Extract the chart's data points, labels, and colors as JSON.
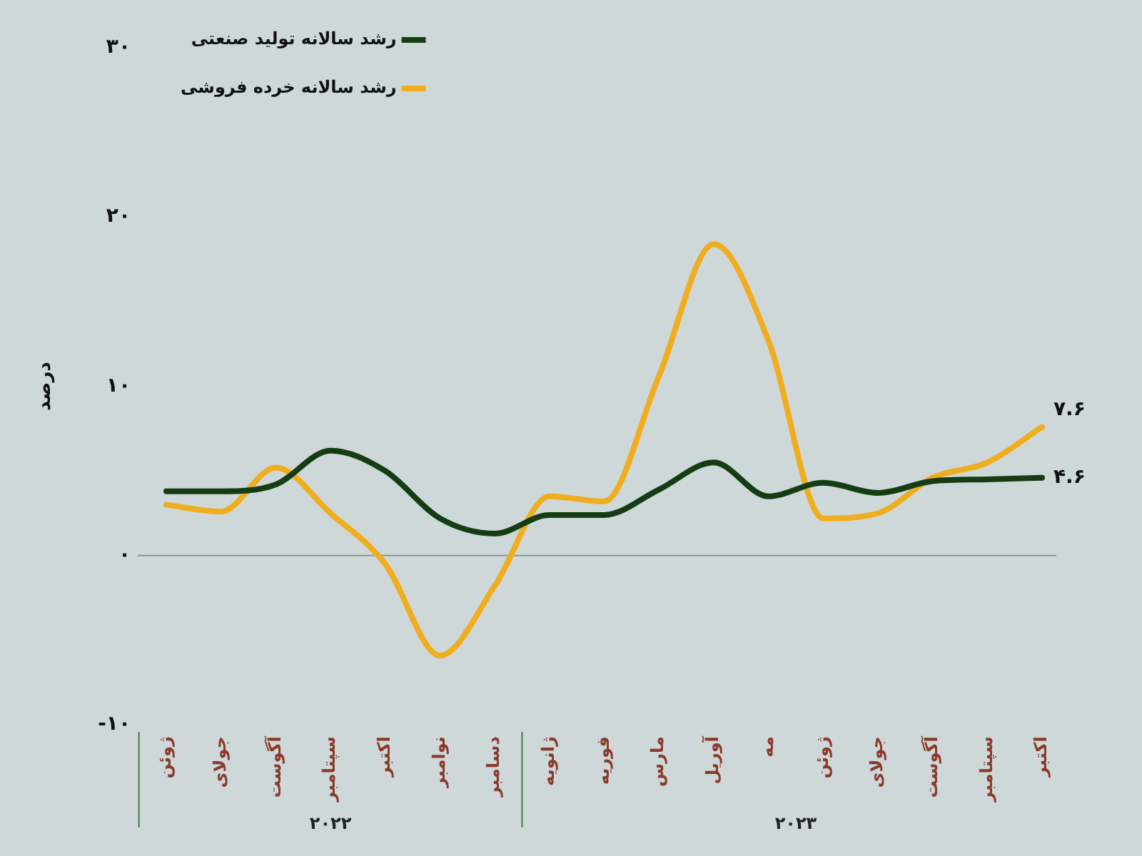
{
  "chart_data": {
    "type": "line",
    "ylabel": "درصد",
    "categories": [
      "ژوئن",
      "جولای",
      "آگوست",
      "سپتامبر",
      "اکتبر",
      "نوامبر",
      "دسامبر",
      "ژانویه",
      "فوریه",
      "مارس",
      "آوریل",
      "مه",
      "ژوئن",
      "جولای",
      "آگوست",
      "سپتامبر",
      "اکتبر"
    ],
    "series": [
      {
        "name": "رشد سالانه تولید صنعتی",
        "color": "#143d14",
        "values": [
          3.8,
          3.8,
          4.2,
          6.2,
          5.0,
          2.2,
          1.3,
          2.4,
          2.4,
          3.9,
          5.5,
          3.5,
          4.3,
          3.7,
          4.4,
          4.5,
          4.6
        ],
        "value_labels": [
          null,
          null,
          null,
          null,
          null,
          null,
          null,
          null,
          null,
          null,
          null,
          null,
          null,
          null,
          null,
          null,
          "۴.۶"
        ]
      },
      {
        "name": "رشد سالانه خرده فروشی",
        "color": "#f0ad1e",
        "values": [
          3.0,
          2.6,
          5.2,
          2.5,
          -0.5,
          -5.9,
          -1.8,
          3.5,
          3.2,
          10.6,
          18.4,
          12.7,
          2.2,
          2.5,
          4.6,
          5.5,
          7.6
        ],
        "value_labels": [
          null,
          null,
          null,
          null,
          null,
          null,
          null,
          null,
          null,
          null,
          null,
          null,
          null,
          null,
          null,
          null,
          "۷.۶"
        ]
      }
    ],
    "ylim": [
      -10,
      30
    ],
    "yticks": [
      {
        "value": -10,
        "label": "-۱۰"
      },
      {
        "value": 0,
        "label": "۰"
      },
      {
        "value": 10,
        "label": "۱۰"
      },
      {
        "value": 20,
        "label": "۲۰"
      },
      {
        "value": 30,
        "label": "۳۰"
      }
    ],
    "ref_lines": [
      {
        "axis": "y",
        "value": 0,
        "color": "#8a9893"
      }
    ],
    "annotations": [
      "۲۰۲۲",
      "۲۰۲۳"
    ],
    "grid": false,
    "legend": "top left",
    "marker": "none",
    "line_style": "solid"
  }
}
